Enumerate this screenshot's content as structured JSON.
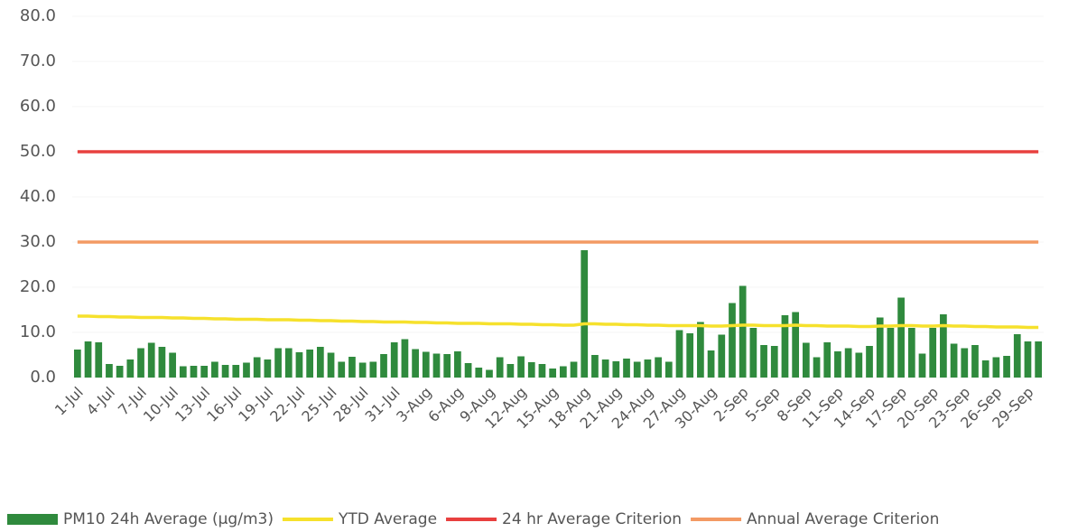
{
  "chart_data": {
    "type": "bar",
    "categories": [
      "1-Jul",
      null,
      null,
      "4-Jul",
      null,
      null,
      "7-Jul",
      null,
      null,
      "10-Jul",
      null,
      null,
      "13-Jul",
      null,
      null,
      "16-Jul",
      null,
      null,
      "19-Jul",
      null,
      null,
      "22-Jul",
      null,
      null,
      "25-Jul",
      null,
      null,
      "28-Jul",
      null,
      null,
      "31-Jul",
      null,
      null,
      "3-Aug",
      null,
      null,
      "6-Aug",
      null,
      null,
      "9-Aug",
      null,
      null,
      "12-Aug",
      null,
      null,
      "15-Aug",
      null,
      null,
      "18-Aug",
      null,
      null,
      "21-Aug",
      null,
      null,
      "24-Aug",
      null,
      null,
      "27-Aug",
      null,
      null,
      "30-Aug",
      null,
      null,
      "2-Sep",
      null,
      null,
      "5-Sep",
      null,
      null,
      "8-Sep",
      null,
      null,
      "11-Sep",
      null,
      null,
      "14-Sep",
      null,
      null,
      "17-Sep",
      null,
      null,
      "20-Sep",
      null,
      null,
      "23-Sep",
      null,
      null,
      "26-Sep",
      null,
      null,
      "29-Sep",
      null
    ],
    "series": [
      {
        "name": "PM10 24h Average (µg/m3)",
        "type": "bar",
        "color": "#2f8a3d",
        "values": [
          6.2,
          8,
          7.8,
          3,
          2.6,
          4,
          6.5,
          7.7,
          6.8,
          5.5,
          2.5,
          2.6,
          2.6,
          3.5,
          2.8,
          2.8,
          3.3,
          4.5,
          4,
          6.5,
          6.5,
          5.6,
          6.2,
          6.8,
          5.5,
          3.5,
          4.6,
          3.3,
          3.5,
          5.2,
          7.8,
          8.5,
          6.3,
          5.7,
          5.3,
          5.2,
          5.8,
          3.2,
          2.2,
          1.7,
          4.5,
          3,
          4.7,
          3.4,
          3,
          2,
          2.5,
          3.5,
          28.2,
          5,
          4,
          3.6,
          4.2,
          3.5,
          4,
          4.5,
          3.5,
          10.5,
          9.8,
          12.3,
          6,
          9.5,
          16.5,
          20.3,
          11,
          7.2,
          7,
          13.8,
          14.5,
          7.7,
          4.5,
          7.8,
          5.8,
          6.5,
          5.5,
          7,
          13.3,
          11,
          17.7,
          11,
          5.3,
          11,
          14,
          7.5,
          6.5,
          7.2,
          3.8,
          4.5,
          4.8,
          9.6,
          8,
          8
        ]
      },
      {
        "name": "YTD Average",
        "type": "line",
        "color": "#f6e12c",
        "values": [
          13.6,
          13.6,
          13.5,
          13.5,
          13.4,
          13.4,
          13.3,
          13.3,
          13.3,
          13.2,
          13.2,
          13.1,
          13.1,
          13.0,
          13.0,
          12.9,
          12.9,
          12.9,
          12.8,
          12.8,
          12.8,
          12.7,
          12.7,
          12.6,
          12.6,
          12.5,
          12.5,
          12.4,
          12.4,
          12.3,
          12.3,
          12.3,
          12.2,
          12.2,
          12.1,
          12.1,
          12.0,
          12.0,
          12.0,
          11.9,
          11.9,
          11.9,
          11.8,
          11.8,
          11.7,
          11.7,
          11.6,
          11.6,
          11.9,
          11.9,
          11.8,
          11.8,
          11.7,
          11.7,
          11.6,
          11.6,
          11.5,
          11.5,
          11.5,
          11.5,
          11.4,
          11.4,
          11.5,
          11.6,
          11.6,
          11.5,
          11.5,
          11.5,
          11.6,
          11.5,
          11.5,
          11.4,
          11.4,
          11.4,
          11.3,
          11.3,
          11.4,
          11.4,
          11.5,
          11.5,
          11.4,
          11.4,
          11.5,
          11.4,
          11.4,
          11.3,
          11.3,
          11.2,
          11.2,
          11.2,
          11.1,
          11.1
        ]
      },
      {
        "name": "24 hr Average Criterion",
        "type": "line",
        "color": "#e8403f",
        "values": [
          50,
          50,
          50,
          50,
          50,
          50,
          50,
          50,
          50,
          50,
          50,
          50,
          50,
          50,
          50,
          50,
          50,
          50,
          50,
          50,
          50,
          50,
          50,
          50,
          50,
          50,
          50,
          50,
          50,
          50,
          50,
          50,
          50,
          50,
          50,
          50,
          50,
          50,
          50,
          50,
          50,
          50,
          50,
          50,
          50,
          50,
          50,
          50,
          50,
          50,
          50,
          50,
          50,
          50,
          50,
          50,
          50,
          50,
          50,
          50,
          50,
          50,
          50,
          50,
          50,
          50,
          50,
          50,
          50,
          50,
          50,
          50,
          50,
          50,
          50,
          50,
          50,
          50,
          50,
          50,
          50,
          50,
          50,
          50,
          50,
          50,
          50,
          50,
          50,
          50,
          50,
          50
        ]
      },
      {
        "name": "Annual Average Criterion",
        "type": "line",
        "color": "#f39a64",
        "values": [
          30,
          30,
          30,
          30,
          30,
          30,
          30,
          30,
          30,
          30,
          30,
          30,
          30,
          30,
          30,
          30,
          30,
          30,
          30,
          30,
          30,
          30,
          30,
          30,
          30,
          30,
          30,
          30,
          30,
          30,
          30,
          30,
          30,
          30,
          30,
          30,
          30,
          30,
          30,
          30,
          30,
          30,
          30,
          30,
          30,
          30,
          30,
          30,
          30,
          30,
          30,
          30,
          30,
          30,
          30,
          30,
          30,
          30,
          30,
          30,
          30,
          30,
          30,
          30,
          30,
          30,
          30,
          30,
          30,
          30,
          30,
          30,
          30,
          30,
          30,
          30,
          30,
          30,
          30,
          30,
          30,
          30,
          30,
          30,
          30,
          30,
          30,
          30,
          30,
          30,
          30,
          30
        ]
      }
    ],
    "ylim": [
      0,
      80
    ],
    "yticks": [
      {
        "value": 0,
        "label": "0.0"
      },
      {
        "value": 10,
        "label": "10.0"
      },
      {
        "value": 20,
        "label": "20.0"
      },
      {
        "value": 30,
        "label": "30.0"
      },
      {
        "value": 40,
        "label": "40.0"
      },
      {
        "value": 50,
        "label": "50.0"
      },
      {
        "value": 60,
        "label": "60.0"
      },
      {
        "value": 70,
        "label": "70.0"
      },
      {
        "value": 80,
        "label": "80.0"
      }
    ],
    "grid": true,
    "legend": "bottom"
  }
}
